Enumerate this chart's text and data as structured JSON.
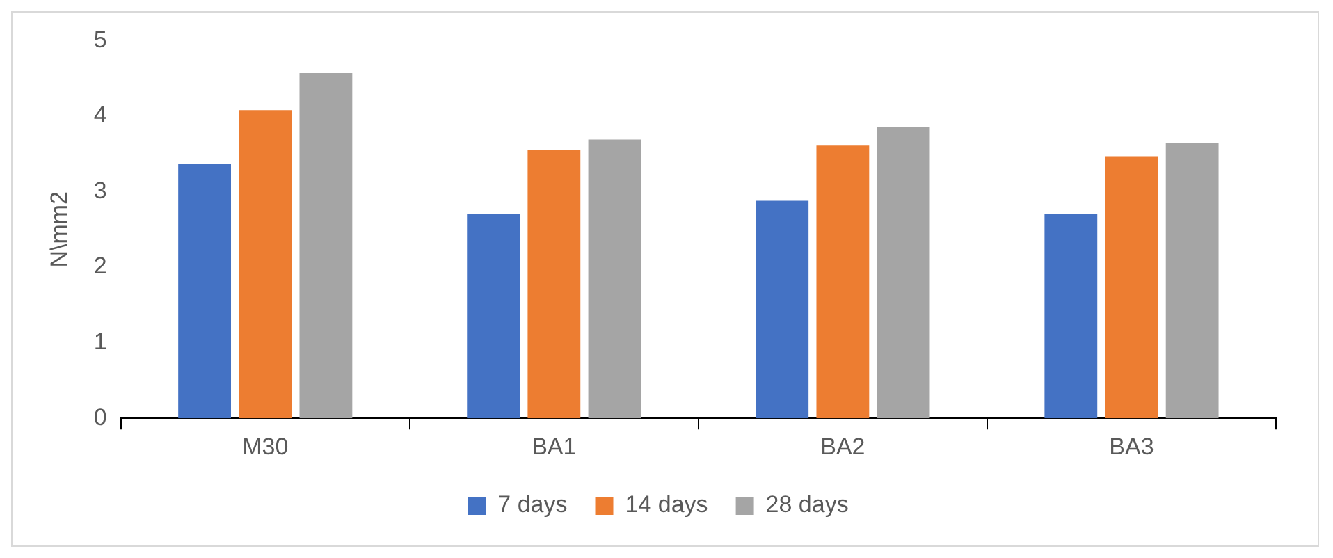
{
  "chart_data": {
    "type": "bar",
    "ylabel": "N\\mm2",
    "categories": [
      "M30",
      "BA1",
      "BA2",
      "BA3"
    ],
    "series": [
      {
        "name": "7 days",
        "color": "#4472c4",
        "values": [
          3.37,
          2.71,
          2.88,
          2.71
        ]
      },
      {
        "name": "14 days",
        "color": "#ed7d31",
        "values": [
          4.08,
          3.55,
          3.61,
          3.47
        ]
      },
      {
        "name": "28 days",
        "color": "#a5a5a5",
        "values": [
          4.57,
          3.69,
          3.86,
          3.65
        ]
      }
    ],
    "ylim": [
      0,
      5
    ],
    "yticks": [
      0,
      1,
      2,
      3,
      4,
      5
    ],
    "grid": false,
    "legend": "bottom"
  }
}
